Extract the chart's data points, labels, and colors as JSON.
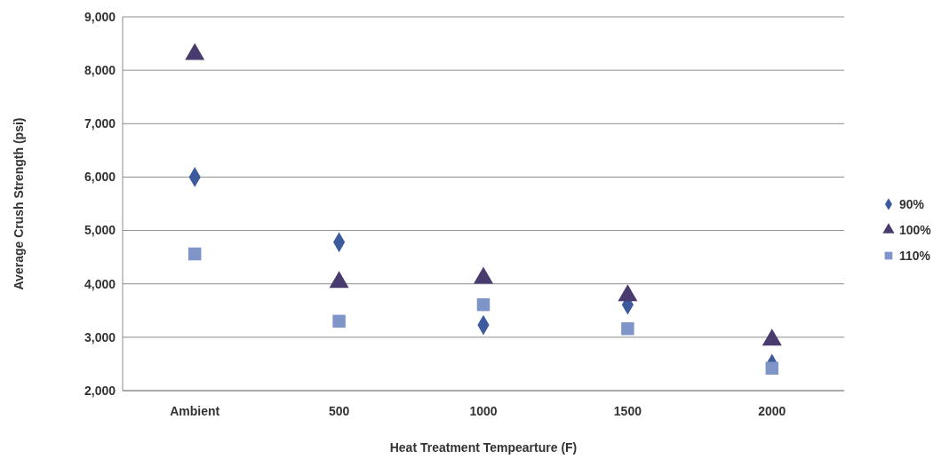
{
  "chart_data": {
    "type": "scatter",
    "xlabel": "Heat Treatment Tempearture (F)",
    "ylabel": "Average Crush Strength (psi)",
    "categories": [
      "Ambient",
      "500",
      "1000",
      "1500",
      "2000"
    ],
    "series": [
      {
        "name": "90%",
        "color": "#3d5a9c",
        "marker": "diamond",
        "values": [
          6000,
          4780,
          3230,
          3610,
          2500
        ]
      },
      {
        "name": "100%",
        "color": "#4a3b6e",
        "marker": "triangle",
        "values": [
          8300,
          4030,
          4110,
          3780,
          2950
        ]
      },
      {
        "name": "110%",
        "color": "#7f95c9",
        "marker": "square",
        "values": [
          4560,
          3300,
          3610,
          3160,
          2420
        ]
      }
    ],
    "ylim": [
      2000,
      9000
    ],
    "yticks": [
      {
        "value": 2000,
        "label": "2,000"
      },
      {
        "value": 3000,
        "label": "3,000"
      },
      {
        "value": 4000,
        "label": "4,000"
      },
      {
        "value": 5000,
        "label": "5,000"
      },
      {
        "value": 6000,
        "label": "6,000"
      },
      {
        "value": 7000,
        "label": "7,000"
      },
      {
        "value": 8000,
        "label": "8,000"
      },
      {
        "value": 9000,
        "label": "9,000"
      }
    ],
    "grid": "y",
    "legend": "right"
  }
}
